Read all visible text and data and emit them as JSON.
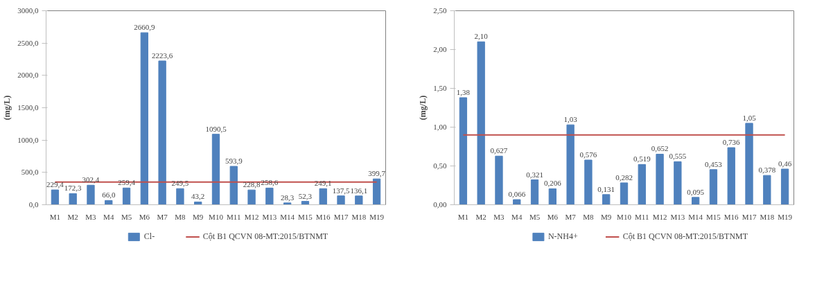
{
  "chart_data": [
    {
      "type": "bar",
      "ylabel": "(mg/L)",
      "categories": [
        "M1",
        "M2",
        "M3",
        "M4",
        "M5",
        "M6",
        "M7",
        "M8",
        "M9",
        "M10",
        "M11",
        "M12",
        "M13",
        "M14",
        "M15",
        "M16",
        "M17",
        "M18",
        "M19"
      ],
      "series": [
        {
          "name": "Cl-",
          "color": "#4f81bd",
          "values": [
            229.4,
            172.3,
            302.4,
            66.0,
            259.4,
            2660.9,
            2223.6,
            249.5,
            43.2,
            1090.5,
            593.9,
            228.8,
            258.6,
            28.3,
            52.3,
            249.1,
            137.5,
            136.1,
            399.7
          ],
          "value_labels": [
            "229,4",
            "172,3",
            "302,4",
            "66,0",
            "259,4",
            "2660,9",
            "2223,6",
            "249,5",
            "43,2",
            "1090,5",
            "593,9",
            "228,8",
            "258,6",
            "28,3",
            "52,3",
            "249,1",
            "137,5",
            "136,1",
            "399,7"
          ]
        },
        {
          "type": "line",
          "name": "Cột B1 QCVN 08-MT:2015/BTNMT",
          "color": "#c0504d",
          "values": [
            350,
            350,
            350,
            350,
            350,
            350,
            350,
            350,
            350,
            350,
            350,
            350,
            350,
            350,
            350,
            350,
            350,
            350,
            350
          ]
        }
      ],
      "ylim": [
        0,
        3000
      ],
      "yticks": [
        {
          "value": 0,
          "label": "0,0"
        },
        {
          "value": 500,
          "label": "500,0"
        },
        {
          "value": 1000,
          "label": "1000,0"
        },
        {
          "value": 1500,
          "label": "1500,0"
        },
        {
          "value": 2000,
          "label": "2000,0"
        },
        {
          "value": 2500,
          "label": "2500,0"
        },
        {
          "value": 3000,
          "label": "3000,0"
        }
      ],
      "grid": false,
      "legend": "bottom"
    },
    {
      "type": "bar",
      "ylabel": "(mg/L)",
      "categories": [
        "M1",
        "M2",
        "M3",
        "M4",
        "M5",
        "M6",
        "M7",
        "M8",
        "M9",
        "M10",
        "M11",
        "M12",
        "M13",
        "M14",
        "M15",
        "M16",
        "M17",
        "M18",
        "M19"
      ],
      "series": [
        {
          "name": "N-NH4+",
          "color": "#4f81bd",
          "values": [
            1.38,
            2.1,
            0.627,
            0.066,
            0.321,
            0.206,
            1.03,
            0.576,
            0.131,
            0.282,
            0.519,
            0.652,
            0.555,
            0.095,
            0.453,
            0.736,
            1.05,
            0.378,
            0.46
          ],
          "value_labels": [
            "1,38",
            "2,10",
            "0,627",
            "0,066",
            "0,321",
            "0,206",
            "1,03",
            "0,576",
            "0,131",
            "0,282",
            "0,519",
            "0,652",
            "0,555",
            "0,095",
            "0,453",
            "0,736",
            "1,05",
            "0,378",
            "0,46"
          ]
        },
        {
          "type": "line",
          "name": "Cột B1 QCVN 08-MT:2015/BTNMT",
          "color": "#c0504d",
          "values": [
            0.9,
            0.9,
            0.9,
            0.9,
            0.9,
            0.9,
            0.9,
            0.9,
            0.9,
            0.9,
            0.9,
            0.9,
            0.9,
            0.9,
            0.9,
            0.9,
            0.9,
            0.9,
            0.9
          ]
        }
      ],
      "ylim": [
        0,
        2.5
      ],
      "yticks": [
        {
          "value": 0,
          "label": "0,00"
        },
        {
          "value": 0.5,
          "label": "0,50"
        },
        {
          "value": 1.0,
          "label": "1,00"
        },
        {
          "value": 1.5,
          "label": "1,50"
        },
        {
          "value": 2.0,
          "label": "2,00"
        },
        {
          "value": 2.5,
          "label": "2,50"
        }
      ],
      "grid": false,
      "legend": "bottom"
    }
  ]
}
